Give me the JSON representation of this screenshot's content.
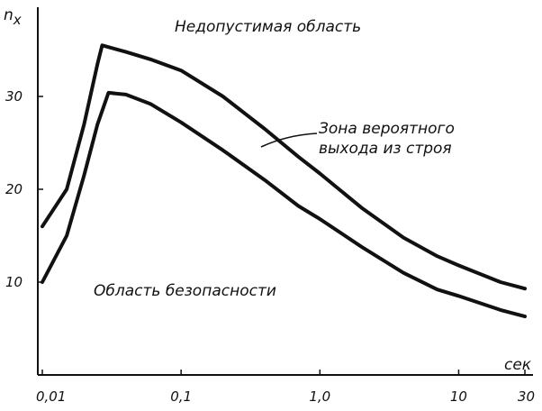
{
  "chart_data": {
    "type": "line",
    "xscale": "log",
    "xlim": [
      0.01,
      30
    ],
    "ylim": [
      0,
      40
    ],
    "xlabel": "сек",
    "ylabel": "nx",
    "ylabel_main": "n",
    "ylabel_sub": "x",
    "x_ticks": [
      {
        "value": 0.01,
        "label": "0,01"
      },
      {
        "value": 0.1,
        "label": "0,1"
      },
      {
        "value": 1.0,
        "label": "1,0"
      },
      {
        "value": 10,
        "label": "10"
      },
      {
        "value": 30,
        "label": "30"
      }
    ],
    "y_ticks": [
      {
        "value": 10,
        "label": "10"
      },
      {
        "value": 20,
        "label": "20"
      },
      {
        "value": 30,
        "label": "30"
      }
    ],
    "grid": false,
    "series": [
      {
        "color": "#111111",
        "points": [
          [
            0.01,
            16
          ],
          [
            0.015,
            20
          ],
          [
            0.02,
            27
          ],
          [
            0.025,
            33.5
          ],
          [
            0.027,
            35.5
          ],
          [
            0.04,
            34.8
          ],
          [
            0.06,
            34.0
          ],
          [
            0.1,
            32.8
          ],
          [
            0.2,
            30.0
          ],
          [
            0.4,
            26.5
          ],
          [
            0.7,
            23.5
          ],
          [
            1.0,
            21.7
          ],
          [
            2.0,
            18.0
          ],
          [
            4.0,
            14.8
          ],
          [
            7.0,
            12.8
          ],
          [
            10,
            11.8
          ],
          [
            20,
            10.0
          ],
          [
            30,
            9.3
          ]
        ]
      },
      {
        "color": "#111111",
        "points": [
          [
            0.01,
            10
          ],
          [
            0.015,
            15
          ],
          [
            0.02,
            21.5
          ],
          [
            0.025,
            27
          ],
          [
            0.03,
            30.4
          ],
          [
            0.04,
            30.2
          ],
          [
            0.06,
            29.2
          ],
          [
            0.1,
            27.2
          ],
          [
            0.2,
            24.2
          ],
          [
            0.4,
            21.0
          ],
          [
            0.7,
            18.2
          ],
          [
            1.0,
            16.8
          ],
          [
            2.0,
            13.8
          ],
          [
            4.0,
            11.0
          ],
          [
            7.0,
            9.2
          ],
          [
            10,
            8.5
          ],
          [
            20,
            7.0
          ],
          [
            30,
            6.3
          ]
        ]
      }
    ],
    "annotations": {
      "forbidden": "Недопустимая область",
      "zone_line1": "Зона вероятного",
      "zone_line2": "выхода из строя",
      "safe": "Область безопасности"
    }
  }
}
